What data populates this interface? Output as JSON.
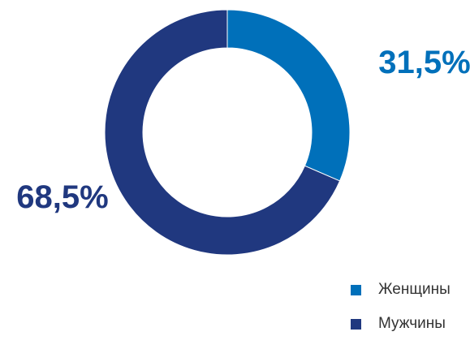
{
  "chart_data": {
    "type": "pie",
    "variant": "donut",
    "title": "",
    "categories": [
      "Женщины",
      "Мужчины"
    ],
    "values": [
      31.5,
      68.5
    ],
    "labels": [
      "31,5%",
      "68,5%"
    ],
    "colors": [
      "#0070ba",
      "#20387f"
    ],
    "legend": {
      "position": "bottom-right",
      "entries": [
        "Женщины",
        "Мужчины"
      ]
    }
  }
}
